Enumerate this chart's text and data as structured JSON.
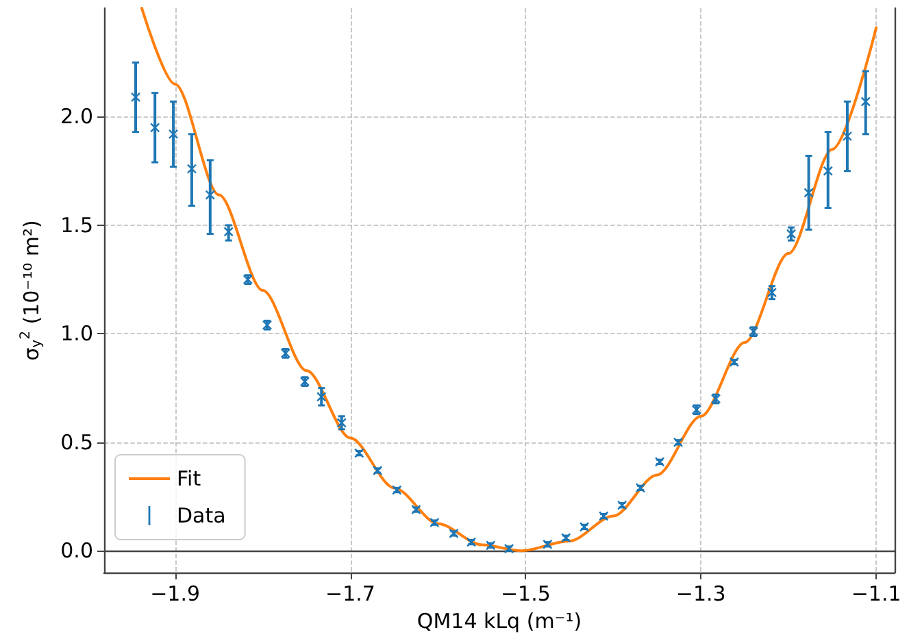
{
  "chart_data": {
    "type": "scatter",
    "xlabel": "QM14 kLq (m⁻¹)",
    "ylabel": "σ$_{y}$$^{2}$ (10⁻¹⁰ m²)",
    "xlim": [
      -1.981,
      -1.079
    ],
    "ylim": [
      -0.1,
      2.5
    ],
    "xticks": [
      {
        "value": -1.9,
        "label": "−1.9"
      },
      {
        "value": -1.7,
        "label": "−1.7"
      },
      {
        "value": -1.5,
        "label": "−1.5"
      },
      {
        "value": -1.3,
        "label": "−1.3"
      },
      {
        "value": -1.1,
        "label": "−1.1"
      }
    ],
    "yticks": [
      {
        "value": 0,
        "label": "0.0"
      },
      {
        "value": 0.5,
        "label": "0.5"
      },
      {
        "value": 1,
        "label": "1.0"
      },
      {
        "value": 1.5,
        "label": "1.5"
      },
      {
        "value": 2,
        "label": "2.0"
      }
    ],
    "grid": true,
    "legend": "bottom left",
    "series": [
      {
        "name": "Fit",
        "type": "line",
        "marker": "none",
        "color": "#ff7f0e",
        "x": [
          -1.938,
          -1.9,
          -1.85,
          -1.8,
          -1.75,
          -1.7,
          -1.65,
          -1.6,
          -1.55,
          -1.505,
          -1.45,
          -1.4,
          -1.35,
          -1.3,
          -1.25,
          -1.2,
          -1.15,
          -1.1
        ],
        "values": [
          2.5,
          2.15,
          1.64,
          1.2,
          0.83,
          0.52,
          0.29,
          0.125,
          0.028,
          0,
          0.045,
          0.16,
          0.35,
          0.62,
          0.96,
          1.37,
          1.85,
          2.41
        ]
      },
      {
        "name": "Data",
        "marker": "cross",
        "color": "#1f77b4",
        "x": [
          -1.945,
          -1.923,
          -1.902,
          -1.881,
          -1.86,
          -1.839,
          -1.817,
          -1.795,
          -1.774,
          -1.752,
          -1.733,
          -1.71,
          -1.69,
          -1.669,
          -1.647,
          -1.625,
          -1.604,
          -1.582,
          -1.562,
          -1.54,
          -1.519,
          -1.475,
          -1.454,
          -1.433,
          -1.411,
          -1.39,
          -1.369,
          -1.347,
          -1.326,
          -1.305,
          -1.283,
          -1.262,
          -1.24,
          -1.219,
          -1.197,
          -1.177,
          -1.155,
          -1.133,
          -1.112
        ],
        "values": [
          2.09,
          1.95,
          1.92,
          1.76,
          1.64,
          1.47,
          1.25,
          1.04,
          0.91,
          0.78,
          0.71,
          0.59,
          0.45,
          0.37,
          0.28,
          0.19,
          0.13,
          0.08,
          0.04,
          0.025,
          0.01,
          0.03,
          0.06,
          0.11,
          0.16,
          0.21,
          0.29,
          0.41,
          0.5,
          0.65,
          0.7,
          0.87,
          1.01,
          1.19,
          1.46,
          1.65,
          1.75,
          1.91,
          2.07
        ],
        "errors": [
          [
            1.93,
            2.25
          ],
          [
            1.79,
            2.11
          ],
          [
            1.77,
            2.07
          ],
          [
            1.59,
            1.92
          ],
          [
            1.46,
            1.8
          ],
          [
            1.43,
            1.5
          ],
          0.02,
          0.02,
          0.02,
          0.02,
          [
            0.67,
            0.75
          ],
          0.03,
          0.01,
          0.01,
          0.01,
          0.01,
          0.01,
          0.01,
          0.01,
          0.01,
          0.01,
          0.01,
          0.01,
          0.01,
          0.01,
          0.01,
          0.01,
          0.01,
          0.01,
          0.02,
          0.02,
          0.01,
          0.02,
          0.03,
          0.03,
          [
            1.48,
            1.82
          ],
          [
            1.58,
            1.93
          ],
          [
            1.75,
            2.07
          ],
          [
            1.92,
            2.21
          ]
        ]
      }
    ]
  }
}
